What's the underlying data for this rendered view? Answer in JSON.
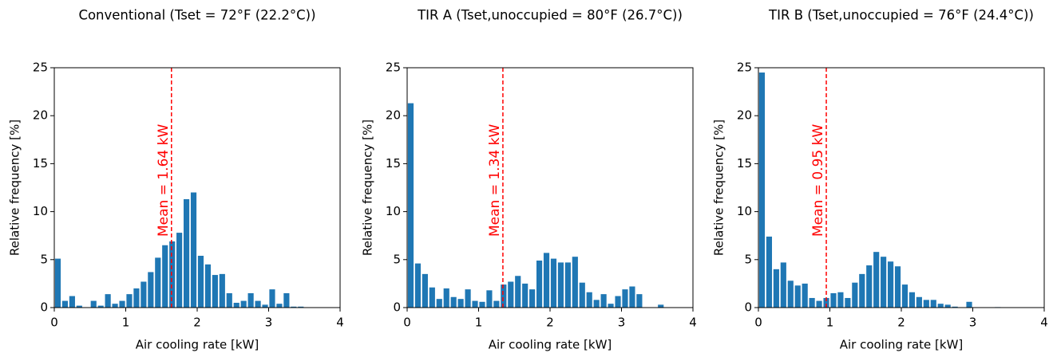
{
  "chart_data": [
    {
      "type": "histogram",
      "title": "Conventional (Tset = 72°F (22.2°C))",
      "x_label": "Air cooling rate [kW]",
      "y_label": "Relative frequency [%]",
      "bins": [
        0,
        0.1,
        0.2,
        0.3,
        0.4,
        0.5,
        0.6,
        0.7,
        0.8,
        0.9,
        1.0,
        1.1,
        1.2,
        1.3,
        1.4,
        1.5,
        1.6,
        1.7,
        1.8,
        1.9,
        2.0,
        2.1,
        2.2,
        2.3,
        2.4,
        2.5,
        2.6,
        2.7,
        2.8,
        2.9,
        3.0,
        3.1,
        3.2,
        3.3,
        3.4,
        3.5,
        3.6,
        3.7,
        3.8,
        3.9,
        4.0
      ],
      "values": [
        5.1,
        0.7,
        1.2,
        0.2,
        0,
        0.7,
        0.2,
        1.4,
        0.4,
        0.7,
        1.4,
        2.0,
        2.7,
        3.7,
        5.2,
        6.5,
        6.9,
        7.8,
        11.3,
        12.0,
        5.4,
        4.5,
        3.4,
        3.5,
        1.5,
        0.5,
        0.7,
        1.5,
        0.7,
        0.3,
        1.9,
        0.4,
        1.5,
        0.1,
        0.1,
        0,
        0,
        0,
        0,
        0
      ],
      "color": "#1f77b4",
      "mean": 1.64,
      "mean_label": "Mean = 1.64 kW",
      "mean_color": "#ff0000",
      "xlim": [
        0,
        4
      ],
      "ylim": [
        0,
        25
      ],
      "xticks": [
        0,
        1,
        2,
        3,
        4
      ],
      "yticks": [
        0,
        5,
        10,
        15,
        20,
        25
      ]
    },
    {
      "type": "histogram",
      "title": "TIR A (Tset,unoccupied = 80°F (26.7°C))",
      "x_label": "Air cooling rate [kW]",
      "y_label": "Relative frequency [%]",
      "bins": [
        0,
        0.1,
        0.2,
        0.3,
        0.4,
        0.5,
        0.6,
        0.7,
        0.8,
        0.9,
        1.0,
        1.1,
        1.2,
        1.3,
        1.4,
        1.5,
        1.6,
        1.7,
        1.8,
        1.9,
        2.0,
        2.1,
        2.2,
        2.3,
        2.4,
        2.5,
        2.6,
        2.7,
        2.8,
        2.9,
        3.0,
        3.1,
        3.2,
        3.3,
        3.4,
        3.5,
        3.6,
        3.7,
        3.8,
        3.9,
        4.0
      ],
      "values": [
        21.3,
        4.6,
        3.5,
        2.1,
        0.9,
        2.0,
        1.1,
        0.9,
        1.9,
        0.7,
        0.6,
        1.8,
        0.7,
        2.4,
        2.7,
        3.3,
        2.5,
        1.9,
        4.9,
        5.7,
        5.1,
        4.7,
        4.7,
        5.3,
        2.6,
        1.6,
        0.8,
        1.4,
        0.4,
        1.2,
        1.9,
        2.2,
        1.4,
        0,
        0,
        0.3,
        0,
        0,
        0,
        0
      ],
      "color": "#1f77b4",
      "mean": 1.34,
      "mean_label": "Mean = 1.34 kW",
      "mean_color": "#ff0000",
      "xlim": [
        0,
        4
      ],
      "ylim": [
        0,
        25
      ],
      "xticks": [
        0,
        1,
        2,
        3,
        4
      ],
      "yticks": [
        0,
        5,
        10,
        15,
        20,
        25
      ]
    },
    {
      "type": "histogram",
      "title": "TIR B (Tset,unoccupied = 76°F (24.4°C))",
      "x_label": "Air cooling rate [kW]",
      "y_label": "Relative frequency [%]",
      "bins": [
        0,
        0.1,
        0.2,
        0.3,
        0.4,
        0.5,
        0.6,
        0.7,
        0.8,
        0.9,
        1.0,
        1.1,
        1.2,
        1.3,
        1.4,
        1.5,
        1.6,
        1.7,
        1.8,
        1.9,
        2.0,
        2.1,
        2.2,
        2.3,
        2.4,
        2.5,
        2.6,
        2.7,
        2.8,
        2.9,
        3.0,
        3.1,
        3.2,
        3.3,
        3.4,
        3.5,
        3.6,
        3.7,
        3.8,
        3.9,
        4.0
      ],
      "values": [
        24.5,
        7.4,
        4.0,
        4.7,
        2.8,
        2.3,
        2.5,
        1.0,
        0.7,
        1.0,
        1.5,
        1.6,
        1.0,
        2.6,
        3.5,
        4.4,
        5.8,
        5.3,
        4.8,
        4.3,
        2.4,
        1.6,
        1.1,
        0.8,
        0.8,
        0.4,
        0.3,
        0.1,
        0,
        0.6,
        0,
        0,
        0,
        0.05,
        0,
        0,
        0,
        0,
        0,
        0
      ],
      "color": "#1f77b4",
      "mean": 0.95,
      "mean_label": "Mean = 0.95 kW",
      "mean_color": "#ff0000",
      "xlim": [
        0,
        4
      ],
      "ylim": [
        0,
        25
      ],
      "xticks": [
        0,
        1,
        2,
        3,
        4
      ],
      "yticks": [
        0,
        5,
        10,
        15,
        20,
        25
      ]
    }
  ]
}
